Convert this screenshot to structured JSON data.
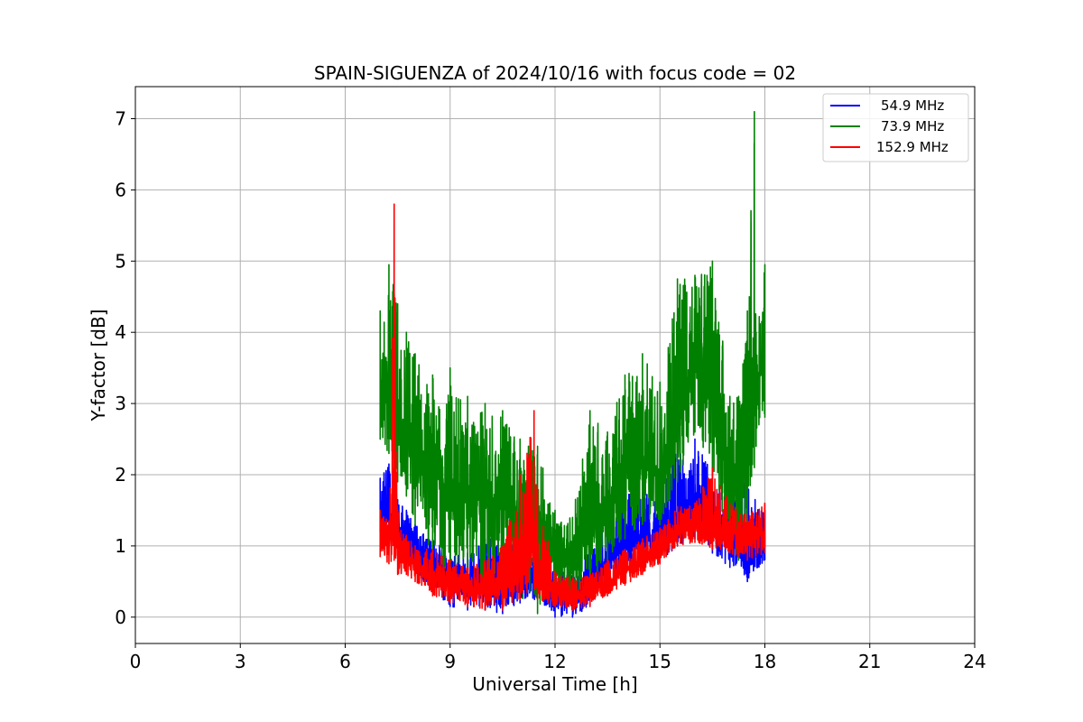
{
  "chart_data": {
    "type": "line",
    "title": "SPAIN-SIGUENZA of 2024/10/16 with focus code = 02",
    "xlabel": "Universal Time [h]",
    "ylabel": "Y-factor [dB]",
    "xlim": [
      0,
      24
    ],
    "ylim": [
      -0.37,
      7.45
    ],
    "xticks": [
      0,
      3,
      6,
      9,
      12,
      15,
      18,
      21,
      24
    ],
    "yticks": [
      0,
      1,
      2,
      3,
      4,
      5,
      6,
      7
    ],
    "grid": true,
    "legend_position": "top-right",
    "series": [
      {
        "name": "54.9 MHz",
        "color": "#0000ff",
        "x": [
          7.0,
          7.25,
          7.5,
          7.75,
          8.0,
          8.5,
          9.0,
          9.5,
          10.0,
          10.5,
          11.0,
          11.5,
          12.0,
          12.5,
          13.0,
          13.5,
          14.0,
          14.5,
          15.0,
          15.5,
          16.0,
          16.5,
          17.0,
          17.5,
          18.0
        ],
        "mean": [
          1.55,
          1.45,
          1.3,
          1.1,
          0.9,
          0.7,
          0.5,
          0.45,
          0.45,
          0.5,
          0.55,
          0.55,
          0.35,
          0.3,
          0.45,
          0.8,
          1.1,
          1.15,
          1.1,
          1.35,
          1.6,
          1.3,
          1.1,
          0.8,
          1.1
        ],
        "min": [
          1.2,
          1.1,
          0.95,
          0.8,
          0.6,
          0.35,
          0.15,
          0.1,
          0.1,
          0.05,
          0.2,
          0.25,
          0.0,
          0.0,
          0.15,
          0.5,
          0.7,
          0.8,
          0.75,
          1.0,
          1.1,
          0.9,
          0.7,
          0.5,
          0.8
        ],
        "max": [
          1.95,
          2.15,
          1.65,
          1.5,
          1.3,
          1.1,
          0.9,
          0.9,
          1.1,
          1.1,
          1.05,
          1.0,
          0.7,
          0.7,
          0.95,
          1.35,
          1.8,
          1.75,
          1.7,
          2.4,
          2.5,
          2.05,
          1.55,
          2.1,
          1.5
        ]
      },
      {
        "name": "73.9 MHz",
        "color": "#008000",
        "x": [
          7.0,
          7.25,
          7.5,
          7.75,
          8.0,
          8.5,
          9.0,
          9.5,
          10.0,
          10.5,
          11.0,
          11.5,
          12.0,
          12.5,
          13.0,
          13.5,
          14.0,
          14.5,
          15.0,
          15.5,
          16.0,
          16.5,
          17.0,
          17.25,
          17.5,
          17.7,
          17.75,
          18.0
        ],
        "mean": [
          3.2,
          3.3,
          2.8,
          2.6,
          2.3,
          2.0,
          1.8,
          1.75,
          1.7,
          1.65,
          1.4,
          1.2,
          0.9,
          0.9,
          1.2,
          1.6,
          2.0,
          2.2,
          2.0,
          2.6,
          3.8,
          3.2,
          2.0,
          1.8,
          2.3,
          3.0,
          3.2,
          3.8
        ],
        "min": [
          2.5,
          2.3,
          1.9,
          1.7,
          1.3,
          0.9,
          0.6,
          0.55,
          0.5,
          0.5,
          0.3,
          0.05,
          0.35,
          0.3,
          0.5,
          0.8,
          1.1,
          1.3,
          1.3,
          1.9,
          2.6,
          2.0,
          0.95,
          0.8,
          1.2,
          2.1,
          2.4,
          2.8
        ],
        "max": [
          4.3,
          4.95,
          4.4,
          4.0,
          3.7,
          3.4,
          3.5,
          3.1,
          3.0,
          2.9,
          2.5,
          2.4,
          1.5,
          1.4,
          2.9,
          2.6,
          3.4,
          3.7,
          3.3,
          4.75,
          4.8,
          5.0,
          3.1,
          3.1,
          4.3,
          7.1,
          4.0,
          4.95
        ]
      },
      {
        "name": "152.9 MHz",
        "color": "#ff0000",
        "x": [
          7.0,
          7.25,
          7.4,
          7.5,
          7.75,
          8.0,
          8.5,
          9.0,
          9.5,
          10.0,
          10.5,
          11.0,
          11.2,
          11.4,
          11.5,
          12.0,
          12.5,
          13.0,
          13.5,
          14.0,
          14.5,
          15.0,
          15.5,
          16.0,
          16.5,
          17.0,
          17.5,
          18.0
        ],
        "mean": [
          1.15,
          1.0,
          1.6,
          0.9,
          0.85,
          0.75,
          0.55,
          0.45,
          0.4,
          0.4,
          0.45,
          0.6,
          1.2,
          1.0,
          0.5,
          0.35,
          0.3,
          0.35,
          0.5,
          0.65,
          0.8,
          0.95,
          1.2,
          1.3,
          1.2,
          1.2,
          1.15,
          1.2
        ],
        "min": [
          0.85,
          0.75,
          0.8,
          0.6,
          0.6,
          0.5,
          0.3,
          0.2,
          0.15,
          0.1,
          0.1,
          0.25,
          0.35,
          0.4,
          0.25,
          0.15,
          0.1,
          0.15,
          0.3,
          0.45,
          0.6,
          0.75,
          1.0,
          1.05,
          0.95,
          0.9,
          0.8,
          0.9
        ],
        "max": [
          1.5,
          1.35,
          5.8,
          1.5,
          1.15,
          1.0,
          0.95,
          0.8,
          0.7,
          0.8,
          1.0,
          2.0,
          2.3,
          2.9,
          1.8,
          0.65,
          0.55,
          0.6,
          0.8,
          0.95,
          1.1,
          1.25,
          1.55,
          1.6,
          2.1,
          1.6,
          1.45,
          1.6
        ]
      }
    ]
  }
}
